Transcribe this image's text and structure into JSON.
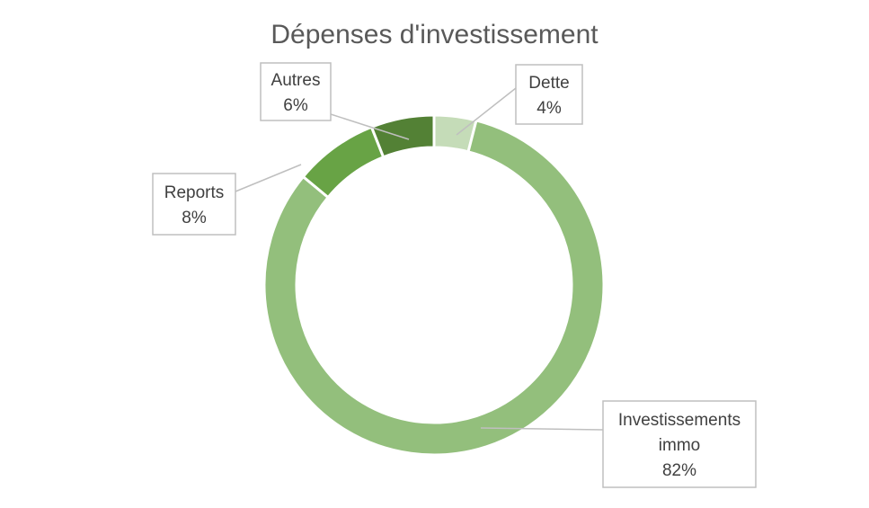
{
  "chart_data": {
    "type": "pie",
    "variant": "doughnut",
    "title": "Dépenses d'investissement",
    "legend": "none",
    "slices": [
      {
        "name": "Dette",
        "value": 4,
        "label": "4%",
        "color": "#c5dcb8"
      },
      {
        "name": "Investissements immo",
        "name_lines": [
          "Investissements",
          "immo"
        ],
        "value": 82,
        "label": "82%",
        "color": "#93bf7c"
      },
      {
        "name": "Reports",
        "value": 8,
        "label": "8%",
        "color": "#68a345"
      },
      {
        "name": "Autres",
        "value": 6,
        "label": "6%",
        "color": "#538135"
      }
    ]
  }
}
